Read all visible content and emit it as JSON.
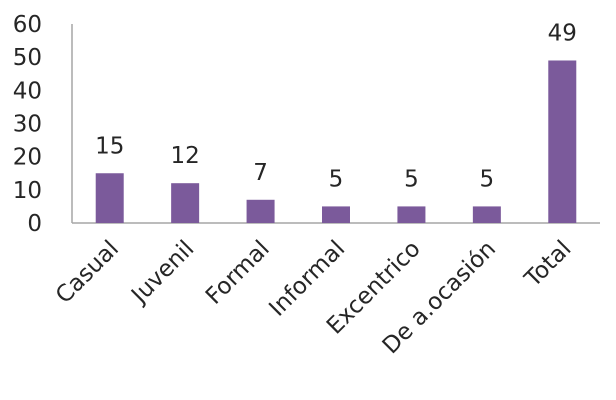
{
  "chart_data": {
    "type": "bar",
    "title": "",
    "xlabel": "",
    "ylabel": "",
    "categories": [
      "Casual",
      "Juvenil",
      "Formal",
      "Informal",
      "Excentrico",
      "De a.ocasión",
      "Total"
    ],
    "values": [
      15,
      12,
      7,
      5,
      5,
      5,
      49
    ],
    "data_labels": [
      "15",
      "12",
      "7",
      "5",
      "5",
      "5",
      "49"
    ],
    "ylim": [
      0,
      60
    ],
    "yticks": [
      0,
      10,
      20,
      30,
      40,
      50,
      60
    ],
    "ytick_labels": [
      "0",
      "10",
      "20",
      "30",
      "40",
      "50",
      "60"
    ],
    "grid": false,
    "legend": "none",
    "bar_color": "#7b5a9b"
  }
}
